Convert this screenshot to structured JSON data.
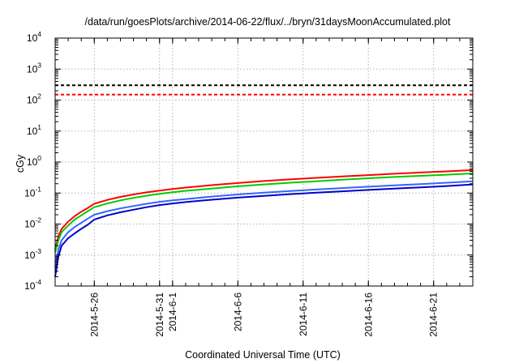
{
  "chart_data": {
    "type": "line",
    "title": "/data/run/goesPlots/archive/2014-06-22/flux/../bryn/31daysMoonAccumulated.plot",
    "xlabel": "Coordinated Universal Time (UTC)",
    "ylabel": "cGy",
    "yscale": "log",
    "ylim": [
      0.0001,
      10000
    ],
    "xlim": [
      "2014-05-23",
      "2014-06-24"
    ],
    "grid": true,
    "y_ticks": [
      {
        "base": "10",
        "exp": "-4",
        "value": 0.0001
      },
      {
        "base": "10",
        "exp": "-3",
        "value": 0.001
      },
      {
        "base": "10",
        "exp": "-2",
        "value": 0.01
      },
      {
        "base": "10",
        "exp": "-1",
        "value": 0.1
      },
      {
        "base": "10",
        "exp": "0",
        "value": 1
      },
      {
        "base": "10",
        "exp": "1",
        "value": 10
      },
      {
        "base": "10",
        "exp": "2",
        "value": 100
      },
      {
        "base": "10",
        "exp": "3",
        "value": 1000
      },
      {
        "base": "10",
        "exp": "4",
        "value": 10000
      }
    ],
    "x_ticks": [
      {
        "date": "2014-05-26",
        "label": "2014-5-26"
      },
      {
        "date": "2014-05-31",
        "label": "2014-5-31"
      },
      {
        "date": "2014-06-01",
        "label": "2014-6-1"
      },
      {
        "date": "2014-06-06",
        "label": "2014-6-6"
      },
      {
        "date": "2014-06-11",
        "label": "2014-6-11"
      },
      {
        "date": "2014-06-16",
        "label": "2014-6-16"
      },
      {
        "date": "2014-06-21",
        "label": "2014-6-21"
      }
    ],
    "thresholds": [
      {
        "value": 300,
        "color": "#000000",
        "style": "dashed"
      },
      {
        "value": 150,
        "color": "#ff0000",
        "style": "dashed"
      }
    ],
    "series": [
      {
        "color": "#ff0000",
        "x": [
          "2014-05-23",
          "2014-05-23 06:00",
          "2014-05-23 12:00",
          "2014-05-24",
          "2014-05-24 12:00",
          "2014-05-25",
          "2014-05-25 12:00",
          "2014-05-26",
          "2014-05-27",
          "2014-05-28",
          "2014-05-29",
          "2014-05-30",
          "2014-05-31",
          "2014-06-01",
          "2014-06-02",
          "2014-06-04",
          "2014-06-06",
          "2014-06-08",
          "2014-06-10",
          "2014-06-12",
          "2014-06-14",
          "2014-06-16",
          "2014-06-18",
          "2014-06-20",
          "2014-06-22",
          "2014-06-24"
        ],
        "y": [
          0.0015,
          0.004,
          0.007,
          0.012,
          0.018,
          0.025,
          0.033,
          0.045,
          0.06,
          0.075,
          0.09,
          0.105,
          0.12,
          0.135,
          0.15,
          0.18,
          0.21,
          0.245,
          0.275,
          0.31,
          0.345,
          0.38,
          0.42,
          0.46,
          0.5,
          0.55
        ]
      },
      {
        "color": "#00cc00",
        "x": [
          "2014-05-23",
          "2014-05-23 06:00",
          "2014-05-23 12:00",
          "2014-05-24",
          "2014-05-24 12:00",
          "2014-05-25",
          "2014-05-25 12:00",
          "2014-05-26",
          "2014-05-27",
          "2014-05-28",
          "2014-05-29",
          "2014-05-30",
          "2014-05-31",
          "2014-06-01",
          "2014-06-02",
          "2014-06-04",
          "2014-06-06",
          "2014-06-08",
          "2014-06-10",
          "2014-06-12",
          "2014-06-14",
          "2014-06-16",
          "2014-06-18",
          "2014-06-20",
          "2014-06-22",
          "2014-06-24"
        ],
        "y": [
          0.0012,
          0.003,
          0.0055,
          0.009,
          0.014,
          0.019,
          0.026,
          0.035,
          0.046,
          0.058,
          0.07,
          0.082,
          0.094,
          0.106,
          0.118,
          0.14,
          0.165,
          0.19,
          0.215,
          0.24,
          0.27,
          0.3,
          0.33,
          0.36,
          0.39,
          0.43
        ]
      },
      {
        "color": "#3366ff",
        "x": [
          "2014-05-23",
          "2014-05-23 06:00",
          "2014-05-23 12:00",
          "2014-05-24",
          "2014-05-24 12:00",
          "2014-05-25",
          "2014-05-25 12:00",
          "2014-05-26",
          "2014-05-27",
          "2014-05-28",
          "2014-05-29",
          "2014-05-30",
          "2014-05-31",
          "2014-06-01",
          "2014-06-02",
          "2014-06-04",
          "2014-06-06",
          "2014-06-08",
          "2014-06-10",
          "2014-06-12",
          "2014-06-14",
          "2014-06-16",
          "2014-06-18",
          "2014-06-20",
          "2014-06-22",
          "2014-06-24"
        ],
        "y": [
          0.0004,
          0.0015,
          0.003,
          0.0055,
          0.008,
          0.011,
          0.015,
          0.02,
          0.026,
          0.032,
          0.038,
          0.045,
          0.052,
          0.058,
          0.064,
          0.077,
          0.09,
          0.103,
          0.116,
          0.13,
          0.145,
          0.16,
          0.177,
          0.195,
          0.215,
          0.24
        ]
      },
      {
        "color": "#0000cc",
        "x": [
          "2014-05-23",
          "2014-05-23 06:00",
          "2014-05-23 12:00",
          "2014-05-24",
          "2014-05-24 12:00",
          "2014-05-25",
          "2014-05-25 12:00",
          "2014-05-26",
          "2014-05-27",
          "2014-05-28",
          "2014-05-29",
          "2014-05-30",
          "2014-05-31",
          "2014-06-01",
          "2014-06-02",
          "2014-06-04",
          "2014-06-06",
          "2014-06-08",
          "2014-06-10",
          "2014-06-12",
          "2014-06-14",
          "2014-06-16",
          "2014-06-18",
          "2014-06-20",
          "2014-06-22",
          "2014-06-24"
        ],
        "y": [
          0.0002,
          0.0009,
          0.002,
          0.0035,
          0.005,
          0.007,
          0.0095,
          0.014,
          0.019,
          0.024,
          0.029,
          0.035,
          0.041,
          0.046,
          0.051,
          0.061,
          0.071,
          0.081,
          0.092,
          0.103,
          0.114,
          0.126,
          0.139,
          0.153,
          0.168,
          0.19
        ]
      }
    ]
  }
}
